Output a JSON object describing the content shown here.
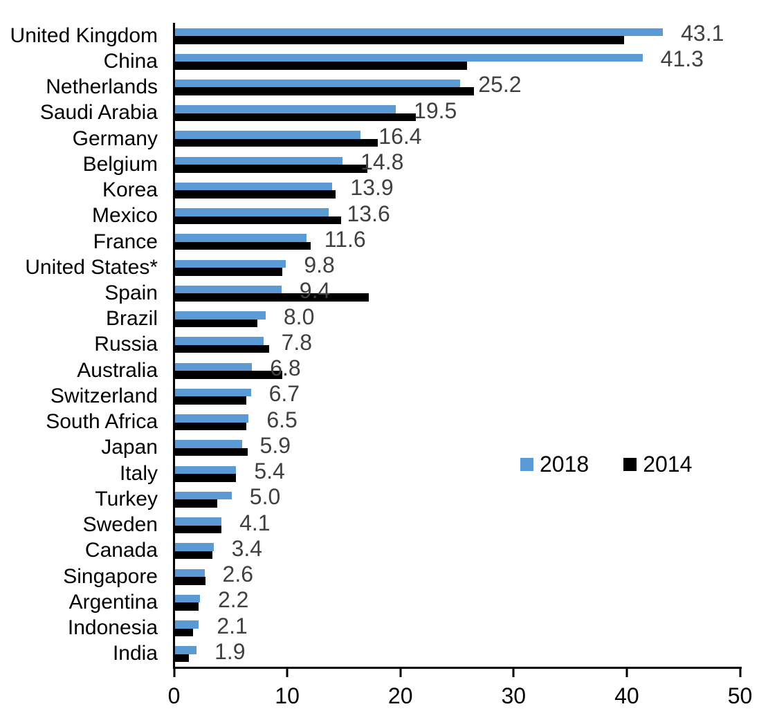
{
  "colors": {
    "series_2018": "#5B9BD5",
    "series_2014": "#000000",
    "value_label": "#404040",
    "axis": "#000000"
  },
  "legend": {
    "entry_2018": "2018",
    "entry_2014": "2014"
  },
  "chart_data": {
    "type": "bar",
    "orientation": "horizontal",
    "title": "",
    "xlabel": "",
    "ylabel": "",
    "xlim": [
      0,
      50
    ],
    "x_ticks": [
      0,
      10,
      20,
      30,
      40,
      50
    ],
    "x_tick_labels": [
      "0",
      "10",
      "20",
      "30",
      "40",
      "50"
    ],
    "grid": false,
    "legend_position": "inside-right-middle",
    "categories": [
      "United Kingdom",
      "China",
      "Netherlands",
      "Saudi Arabia",
      "Germany",
      "Belgium",
      "Korea",
      "Mexico",
      "France",
      "United States*",
      "Spain",
      "Brazil",
      "Russia",
      "Australia",
      "Switzerland",
      "South Africa",
      "Japan",
      "Italy",
      "Turkey",
      "Sweden",
      "Canada",
      "Singapore",
      "Argentina",
      "Indonesia",
      "India"
    ],
    "series": [
      {
        "name": "2018",
        "color": "#5B9BD5",
        "values": [
          43.1,
          41.3,
          25.2,
          19.5,
          16.4,
          14.8,
          13.9,
          13.6,
          11.6,
          9.8,
          9.4,
          8.0,
          7.8,
          6.8,
          6.7,
          6.5,
          5.9,
          5.4,
          5.0,
          4.1,
          3.4,
          2.6,
          2.2,
          2.1,
          1.9
        ],
        "data_labels": [
          "43.1",
          "41.3",
          "25.2",
          "19.5",
          "16.4",
          "14.8",
          "13.9",
          "13.6",
          "11.6",
          "9.8",
          "9.4",
          "8.0",
          "7.8",
          "6.8",
          "6.7",
          "6.5",
          "5.9",
          "5.4",
          "5.0",
          "4.1",
          "3.4",
          "2.6",
          "2.2",
          "2.1",
          "1.9"
        ]
      },
      {
        "name": "2014",
        "color": "#000000",
        "values": [
          39.7,
          25.8,
          26.4,
          21.3,
          17.9,
          17.0,
          14.2,
          14.7,
          12.0,
          9.5,
          17.1,
          7.3,
          8.3,
          9.5,
          6.3,
          6.3,
          6.4,
          5.4,
          3.7,
          4.1,
          3.3,
          2.7,
          2.1,
          1.6,
          1.2
        ]
      }
    ]
  }
}
